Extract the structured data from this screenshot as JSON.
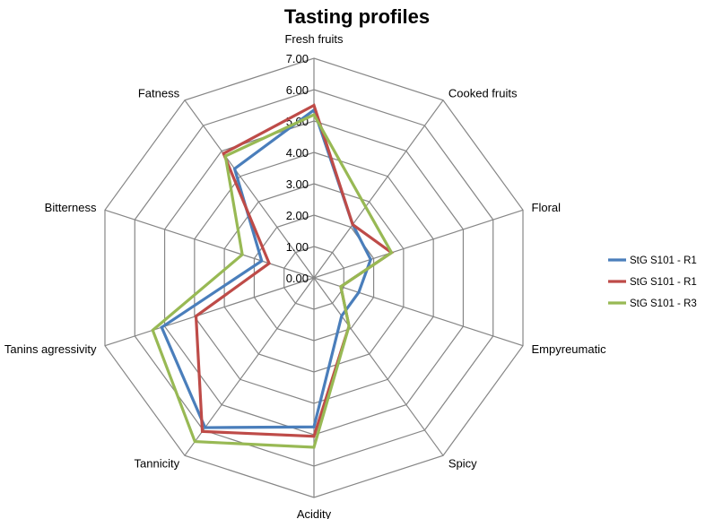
{
  "chart_data": {
    "type": "radar",
    "title": "Tasting profiles",
    "axes": [
      "Fresh fruits",
      "Cooked fruits",
      "Floral",
      "Empyreumatic",
      "Spicy",
      "Acidity",
      "Tannicity",
      "Tanins agressivity",
      "Bitterness",
      "Fatness"
    ],
    "rlim": [
      0,
      7
    ],
    "ticks": [
      "0.00",
      "1.00",
      "2.00",
      "3.00",
      "4.00",
      "5.00",
      "6.00",
      "7.00"
    ],
    "legend_position": "right",
    "series": [
      {
        "name": "StG S101 - R1",
        "color": "#4A7EBB",
        "values": [
          5.35,
          2.1,
          1.9,
          1.5,
          1.5,
          4.75,
          5.9,
          5.1,
          1.75,
          4.3
        ]
      },
      {
        "name": "StG S101 - R1",
        "color": "#BE4B48",
        "values": [
          5.5,
          2.1,
          2.6,
          0.9,
          1.9,
          5.05,
          6.05,
          3.95,
          1.5,
          4.9
        ]
      },
      {
        "name": "StG S101 - R3",
        "color": "#98B954",
        "values": [
          5.2,
          2.8,
          2.6,
          0.9,
          1.9,
          5.4,
          6.45,
          5.4,
          2.4,
          4.8
        ]
      }
    ]
  }
}
